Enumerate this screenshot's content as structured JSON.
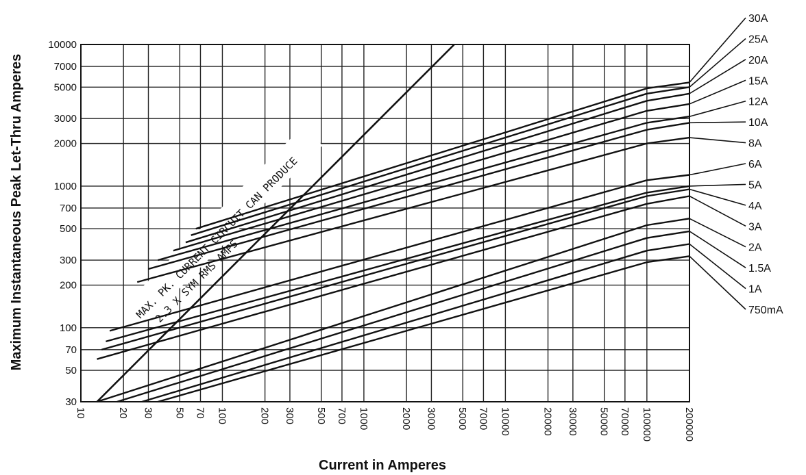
{
  "chart_data": {
    "type": "line",
    "title": "",
    "xlabel": "Current in Amperes",
    "ylabel": "Maximum Instantaneous Peak Let-Thru Amperes",
    "x_scale": "log",
    "y_scale": "log",
    "xlim": [
      10,
      200000
    ],
    "ylim": [
      30,
      10000
    ],
    "x_ticks": [
      10,
      20,
      30,
      50,
      70,
      100,
      200,
      300,
      500,
      700,
      1000,
      2000,
      3000,
      5000,
      7000,
      10000,
      20000,
      30000,
      50000,
      70000,
      100000,
      200000
    ],
    "x_tick_labels": [
      "10",
      "20",
      "30",
      "50",
      "70",
      "100",
      "200",
      "300",
      "500",
      "700",
      "1000",
      "2000",
      "3000",
      "5000",
      "7000",
      "10000",
      "20000",
      "30000",
      "50000",
      "70000",
      "100000",
      "200000"
    ],
    "y_ticks": [
      30,
      50,
      70,
      100,
      200,
      300,
      500,
      700,
      1000,
      2000,
      3000,
      5000,
      7000,
      10000
    ],
    "y_tick_labels": [
      "30",
      "50",
      "70",
      "100",
      "200",
      "300",
      "500",
      "700",
      "1000",
      "2000",
      "3000",
      "5000",
      "7000",
      "10000"
    ],
    "grid": true,
    "max_line": {
      "annotation_line1": "MAX. PK. CURRENT CIRCUIT CAN PRODUCE",
      "annotation_line2": "2.3 X SYM RMS AMPS",
      "x": [
        13,
        4350
      ],
      "y": [
        30,
        10000
      ]
    },
    "series": [
      {
        "name": "30A",
        "x": [
          65,
          100000,
          200000
        ],
        "y": [
          500,
          4900,
          5400
        ]
      },
      {
        "name": "25A",
        "x": [
          60,
          100000,
          200000
        ],
        "y": [
          450,
          4500,
          5000
        ]
      },
      {
        "name": "20A",
        "x": [
          55,
          100000,
          200000
        ],
        "y": [
          400,
          4000,
          4500
        ]
      },
      {
        "name": "15A",
        "x": [
          45,
          100000,
          200000
        ],
        "y": [
          350,
          3400,
          3800
        ]
      },
      {
        "name": "12A",
        "x": [
          35,
          100000,
          200000
        ],
        "y": [
          300,
          2800,
          3100
        ]
      },
      {
        "name": "10A",
        "x": [
          30,
          100000,
          200000
        ],
        "y": [
          260,
          2500,
          2800
        ]
      },
      {
        "name": "8A",
        "x": [
          25,
          100000,
          200000
        ],
        "y": [
          210,
          2000,
          2200
        ]
      },
      {
        "name": "6A",
        "x": [
          16,
          100000,
          200000
        ],
        "y": [
          95,
          1100,
          1200
        ]
      },
      {
        "name": "5A",
        "x": [
          15,
          100000,
          200000
        ],
        "y": [
          80,
          900,
          1000
        ]
      },
      {
        "name": "4A",
        "x": [
          14,
          100000,
          200000
        ],
        "y": [
          70,
          850,
          950
        ]
      },
      {
        "name": "3A",
        "x": [
          13,
          100000,
          200000
        ],
        "y": [
          60,
          750,
          850
        ]
      },
      {
        "name": "2A",
        "x": [
          13,
          100000,
          200000
        ],
        "y": [
          30,
          530,
          590
        ]
      },
      {
        "name": "1.5A",
        "x": [
          18,
          100000,
          200000
        ],
        "y": [
          30,
          430,
          480
        ]
      },
      {
        "name": "1A",
        "x": [
          27,
          100000,
          200000
        ],
        "y": [
          30,
          350,
          390
        ]
      },
      {
        "name": "750mA",
        "x": [
          35,
          100000,
          200000
        ],
        "y": [
          30,
          290,
          320
        ]
      }
    ]
  }
}
